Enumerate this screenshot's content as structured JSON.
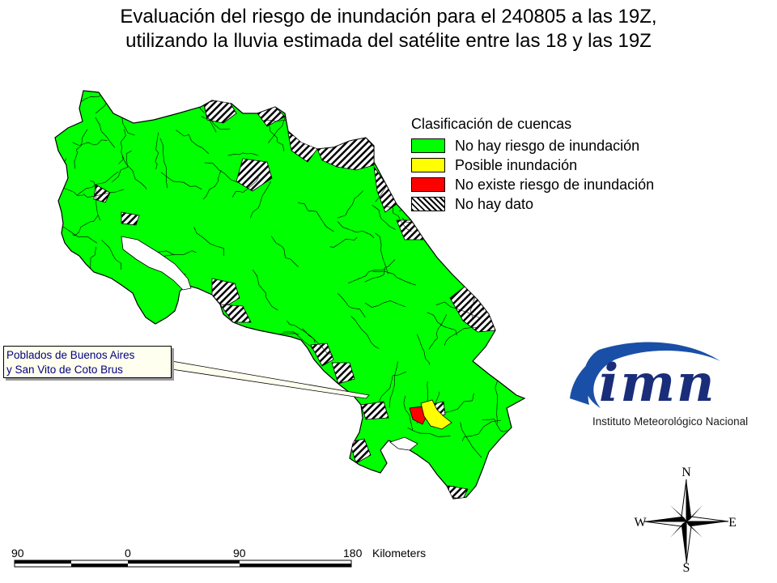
{
  "title": {
    "line1": "Evaluación del riesgo de inundación para el 240805 a las 19Z,",
    "line2": "utilizando la lluvia estimada del satélite entre las 18 y las 19Z"
  },
  "legend": {
    "heading": "Clasificación de cuencas",
    "items": [
      {
        "label": "No hay riesgo de inundación",
        "color": "#00ff00"
      },
      {
        "label": "Posible inundación",
        "color": "#ffff00"
      },
      {
        "label": "No existe riesgo de inundación",
        "color": "#ff0000"
      },
      {
        "label": "No hay dato",
        "color": "hatched"
      }
    ]
  },
  "callout": {
    "line1": "Poblados de Buenos Aires",
    "line2": "y San Vito de Coto Brus"
  },
  "logo": {
    "wordmark": "imn",
    "subtitle": "Instituto Meteorológico Nacional"
  },
  "compass": {
    "n": "N",
    "s": "S",
    "e": "E",
    "w": "W"
  },
  "scale": {
    "labels": [
      "90",
      "0",
      "90",
      "180"
    ],
    "unit": "Kilometers"
  }
}
